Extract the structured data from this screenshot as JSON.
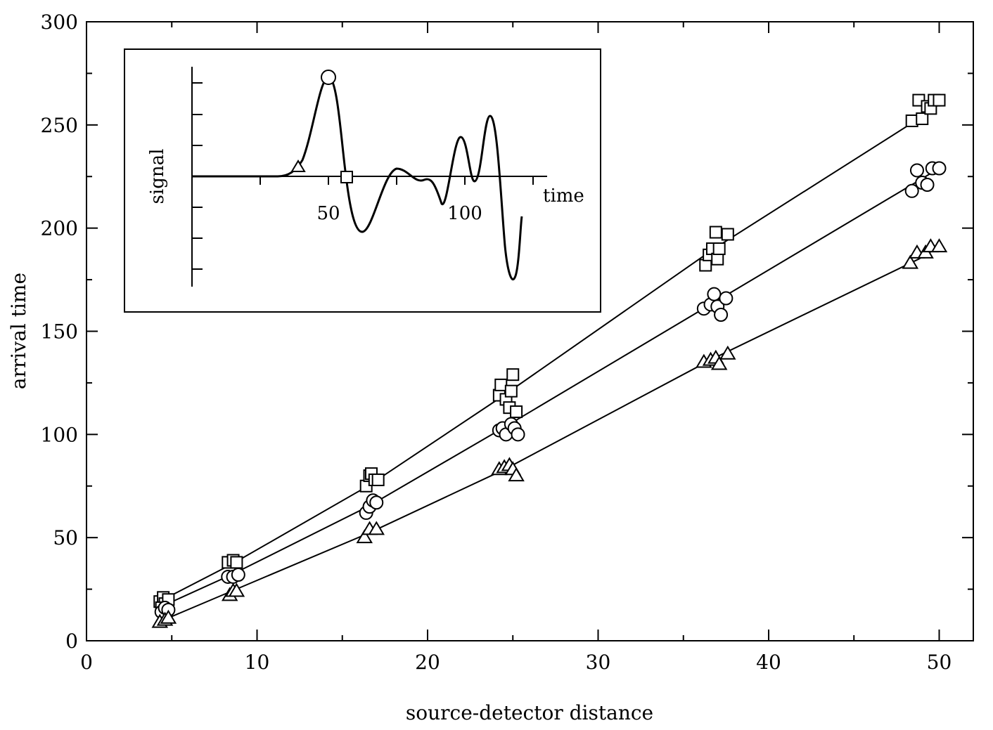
{
  "chart_data": {
    "type": "scatter",
    "title": "",
    "xlabel": "source-detector distance",
    "ylabel": "arrival time",
    "xlim": [
      0,
      52
    ],
    "ylim": [
      0,
      300
    ],
    "x_ticks": [
      0,
      10,
      20,
      30,
      40,
      50
    ],
    "y_ticks": [
      0,
      50,
      100,
      150,
      200,
      250,
      300
    ],
    "x_tick_labels": [
      "0",
      "10",
      "20",
      "30",
      "40",
      "50"
    ],
    "y_tick_labels": [
      "0",
      "50",
      "100",
      "150",
      "200",
      "250",
      "300"
    ],
    "grid": false,
    "legend": "none",
    "series": [
      {
        "marker": "square",
        "fit_line": [
          [
            4.5,
            20
          ],
          [
            8.5,
            37
          ],
          [
            16.5,
            75
          ],
          [
            24.3,
            118
          ],
          [
            36.8,
            190
          ],
          [
            48.8,
            253
          ],
          [
            50,
            260
          ]
        ],
        "points": [
          [
            4.3,
            19
          ],
          [
            4.5,
            21
          ],
          [
            4.6,
            18
          ],
          [
            4.8,
            20
          ],
          [
            4.4,
            16
          ],
          [
            8.3,
            38
          ],
          [
            8.6,
            39
          ],
          [
            8.8,
            38
          ],
          [
            16.4,
            75
          ],
          [
            16.6,
            80
          ],
          [
            16.7,
            81
          ],
          [
            16.9,
            78
          ],
          [
            17.1,
            78
          ],
          [
            24.2,
            119
          ],
          [
            24.3,
            124
          ],
          [
            24.6,
            117
          ],
          [
            24.8,
            113
          ],
          [
            24.9,
            121
          ],
          [
            25.0,
            129
          ],
          [
            25.2,
            111
          ],
          [
            36.3,
            182
          ],
          [
            36.5,
            187
          ],
          [
            36.7,
            190
          ],
          [
            36.9,
            198
          ],
          [
            37.0,
            185
          ],
          [
            37.1,
            190
          ],
          [
            37.6,
            197
          ],
          [
            48.4,
            252
          ],
          [
            48.8,
            262
          ],
          [
            49.0,
            253
          ],
          [
            49.3,
            259
          ],
          [
            49.5,
            258
          ],
          [
            49.7,
            262
          ],
          [
            50.0,
            262
          ]
        ]
      },
      {
        "marker": "circle",
        "fit_line": [
          [
            4.5,
            17
          ],
          [
            8.5,
            32
          ],
          [
            16.5,
            65
          ],
          [
            24.4,
            103
          ],
          [
            36.8,
            164
          ],
          [
            48.8,
            223
          ],
          [
            50,
            229
          ]
        ],
        "points": [
          [
            4.4,
            14
          ],
          [
            4.6,
            16
          ],
          [
            4.8,
            15
          ],
          [
            8.3,
            31
          ],
          [
            8.6,
            31
          ],
          [
            8.9,
            32
          ],
          [
            16.4,
            62
          ],
          [
            16.6,
            65
          ],
          [
            16.8,
            68
          ],
          [
            17.0,
            67
          ],
          [
            24.2,
            102
          ],
          [
            24.4,
            103
          ],
          [
            24.6,
            100
          ],
          [
            24.9,
            105
          ],
          [
            25.1,
            103
          ],
          [
            25.3,
            100
          ],
          [
            36.2,
            161
          ],
          [
            36.6,
            163
          ],
          [
            36.8,
            168
          ],
          [
            37.0,
            162
          ],
          [
            37.2,
            158
          ],
          [
            37.5,
            166
          ],
          [
            48.4,
            218
          ],
          [
            48.7,
            228
          ],
          [
            49.0,
            222
          ],
          [
            49.3,
            221
          ],
          [
            49.6,
            229
          ],
          [
            50.0,
            229
          ]
        ]
      },
      {
        "marker": "triangle",
        "fit_line": [
          [
            4.5,
            10
          ],
          [
            8.5,
            24
          ],
          [
            16.5,
            52
          ],
          [
            24.5,
            83
          ],
          [
            36.8,
            137
          ],
          [
            48.8,
            185
          ],
          [
            50,
            191
          ]
        ],
        "points": [
          [
            4.3,
            9
          ],
          [
            4.6,
            10
          ],
          [
            4.8,
            11
          ],
          [
            8.4,
            22
          ],
          [
            8.6,
            24
          ],
          [
            8.8,
            24
          ],
          [
            16.3,
            50
          ],
          [
            16.6,
            54
          ],
          [
            17.0,
            54
          ],
          [
            24.2,
            83
          ],
          [
            24.5,
            84
          ],
          [
            24.8,
            85
          ],
          [
            25.0,
            83
          ],
          [
            25.2,
            80
          ],
          [
            36.2,
            135
          ],
          [
            36.6,
            136
          ],
          [
            36.9,
            137
          ],
          [
            37.1,
            134
          ],
          [
            37.6,
            139
          ],
          [
            48.3,
            183
          ],
          [
            48.7,
            188
          ],
          [
            49.2,
            188
          ],
          [
            49.5,
            191
          ],
          [
            50.0,
            191
          ]
        ]
      }
    ],
    "inset": {
      "type": "line",
      "xlabel": "time",
      "ylabel": "signal",
      "x_tick_labels": [
        "50",
        "100"
      ],
      "markers": [
        "triangle",
        "circle",
        "square"
      ]
    }
  }
}
